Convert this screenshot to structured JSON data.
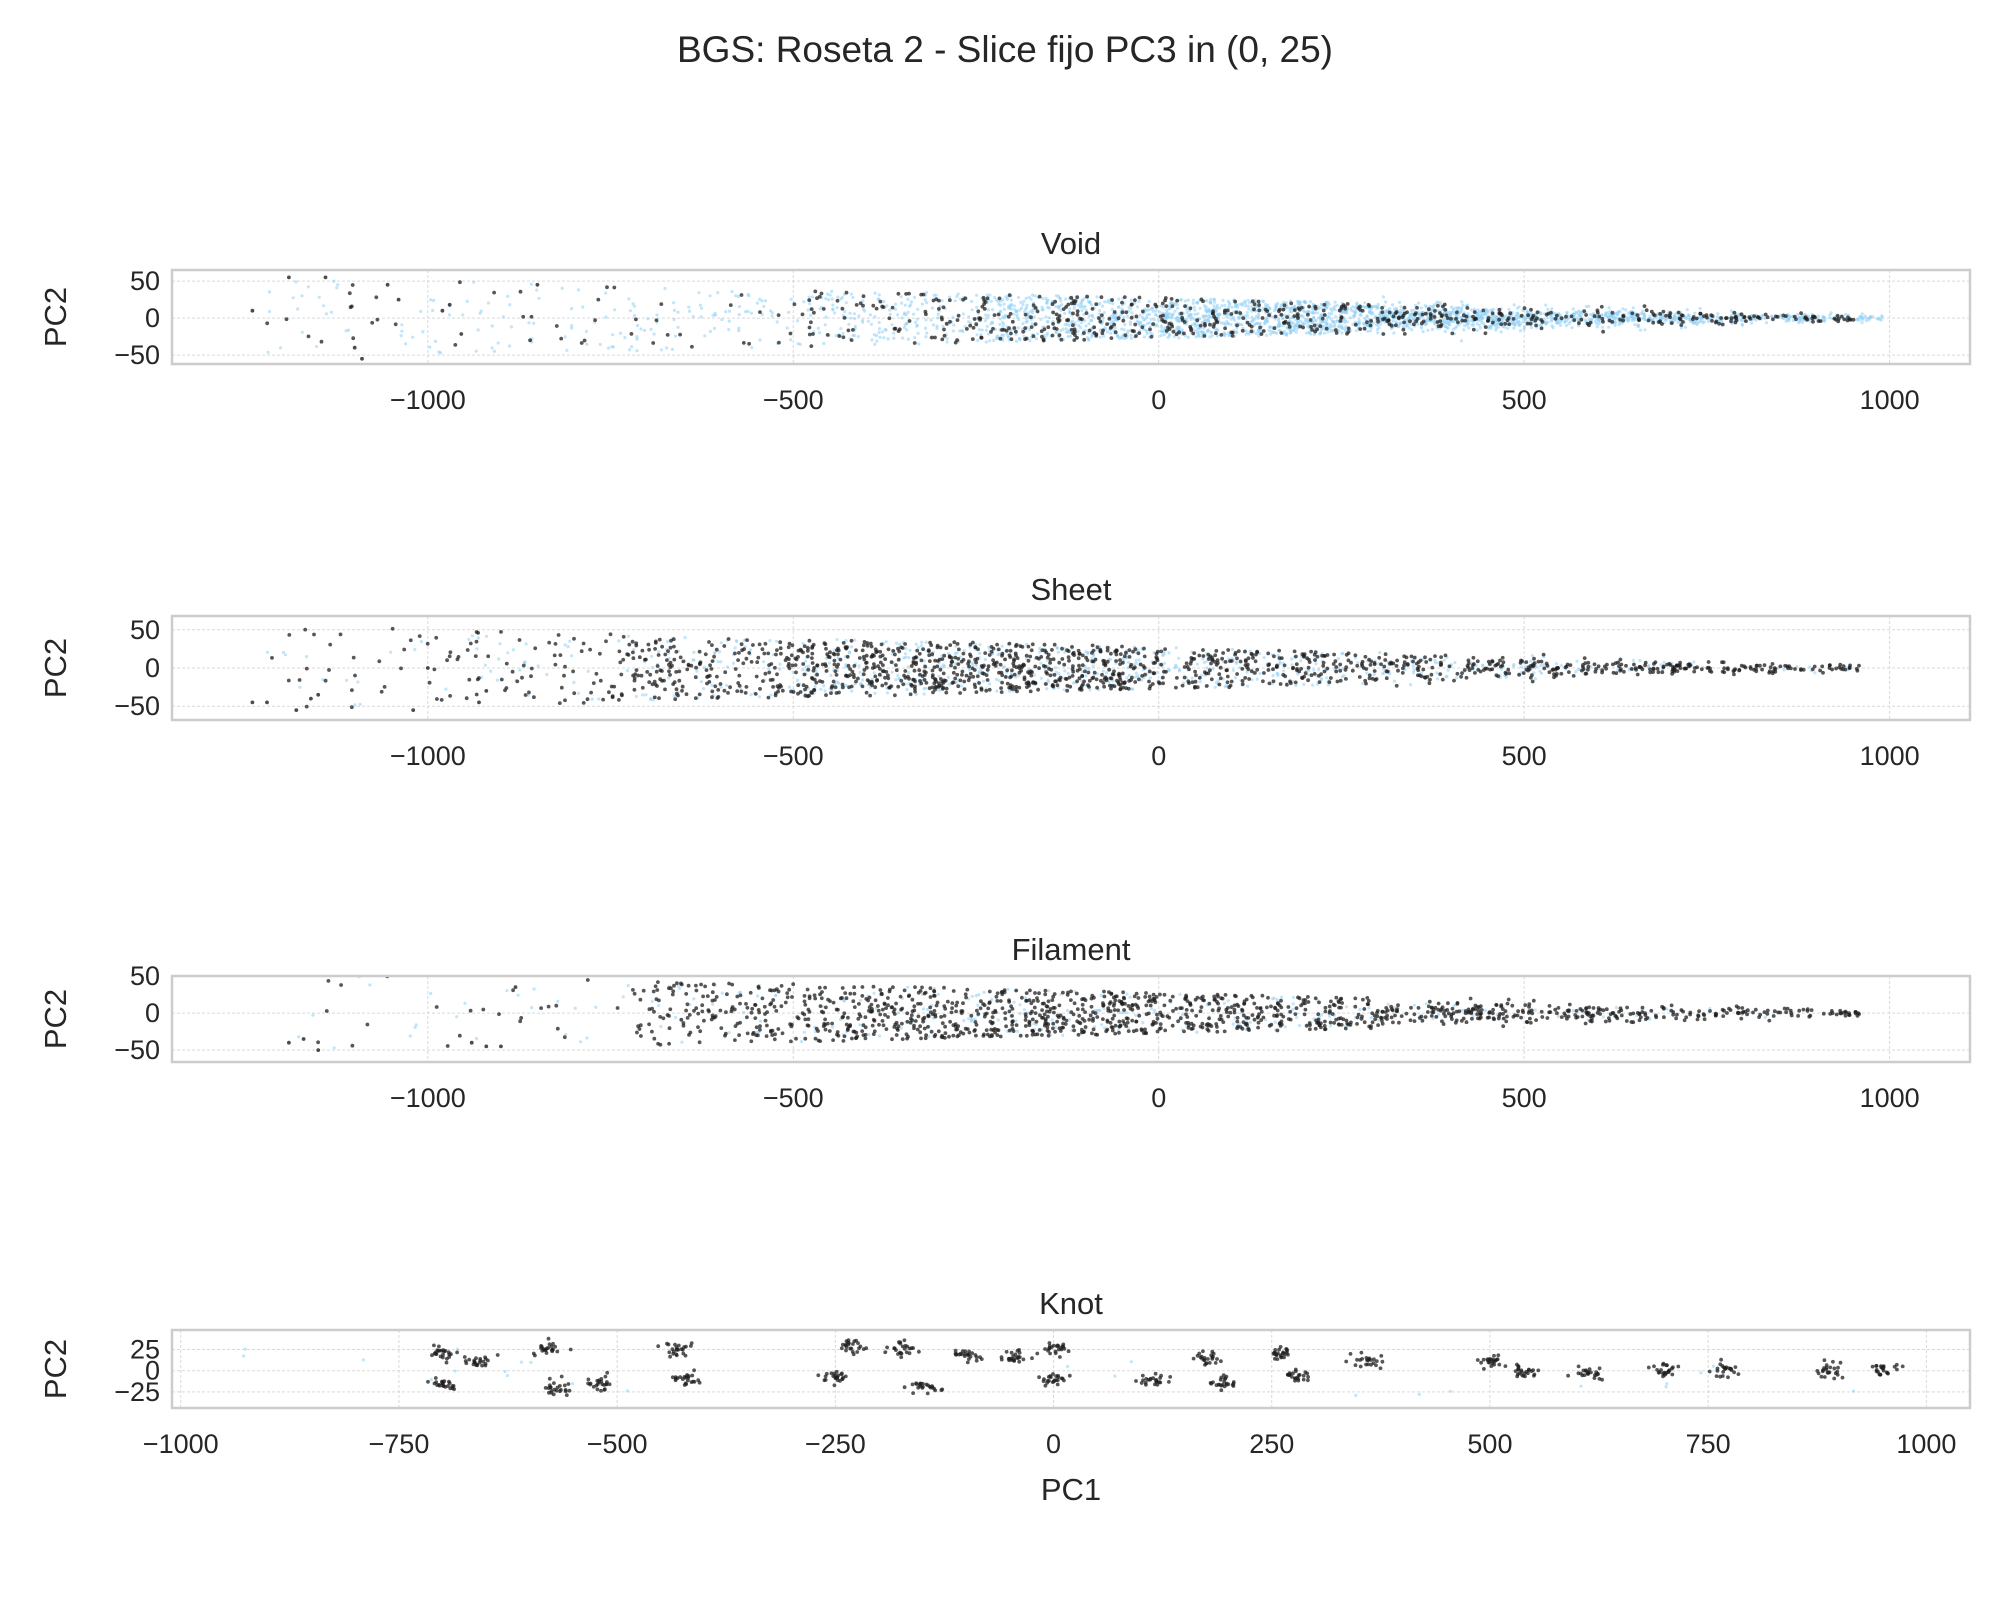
{
  "figure": {
    "title": "BGS: Roseta 2 - Slice fijo PC3 in (0, 25)"
  },
  "colors": {
    "background_points": "#8ecff5",
    "class_points": "#1f1f1f",
    "axes_edge": "#cccccc",
    "grid": "#d9d9d9",
    "text": "#262626"
  },
  "chart_data": [
    {
      "type": "scatter",
      "title": "Void",
      "xlabel": "",
      "ylabel": "PC2",
      "xlim": [
        -1350,
        1110
      ],
      "ylim": [
        -62,
        65
      ],
      "xticks": [
        -1000,
        -500,
        0,
        500,
        1000
      ],
      "xtick_labels": [
        "−1000",
        "−500",
        "0",
        "500",
        "1000"
      ],
      "yticks": [
        -50,
        0,
        50
      ],
      "ytick_labels": [
        "−50",
        "0",
        "50"
      ],
      "grid": true,
      "series": [
        {
          "role": "background",
          "color": "#8ecff5",
          "density": [
            0.05,
            0.07,
            0.12,
            0.3,
            0.7,
            1.0,
            0.9,
            0.6,
            0.3
          ],
          "x_range": [
            -1220,
            990
          ],
          "count": 2600
        },
        {
          "role": "class",
          "color": "#1f1f1f",
          "density": [
            0.05,
            0.06,
            0.08,
            0.3,
            0.5,
            0.5,
            0.4,
            0.3,
            0.25
          ],
          "x_range": [
            -1220,
            960
          ],
          "count": 650
        }
      ],
      "points": [
        {
          "x": -1240,
          "y": 10
        },
        {
          "x": -1190,
          "y": 55
        },
        {
          "x": -1140,
          "y": 55
        },
        {
          "x": -1100,
          "y": -40
        },
        {
          "x": -1055,
          "y": 45
        },
        {
          "x": -1040,
          "y": 25
        },
        {
          "x": -980,
          "y": 10
        },
        {
          "x": -970,
          "y": 18
        },
        {
          "x": -850,
          "y": 45
        },
        {
          "x": -860,
          "y": -30
        },
        {
          "x": -1090,
          "y": -55
        }
      ]
    },
    {
      "type": "scatter",
      "title": "Sheet",
      "xlabel": "",
      "ylabel": "PC2",
      "xlim": [
        -1350,
        1110
      ],
      "ylim": [
        -68,
        68
      ],
      "xticks": [
        -1000,
        -500,
        0,
        500,
        1000
      ],
      "xtick_labels": [
        "−1000",
        "−500",
        "0",
        "500",
        "1000"
      ],
      "yticks": [
        -50,
        0,
        50
      ],
      "ytick_labels": [
        "−50",
        "0",
        "50"
      ],
      "grid": true,
      "series": [
        {
          "role": "background",
          "color": "#8ecff5",
          "density": [
            0.05,
            0.1,
            0.3,
            0.6,
            0.6,
            0.5,
            0.35,
            0.2,
            0.1
          ],
          "x_range": [
            -1220,
            960
          ],
          "count": 700
        },
        {
          "role": "class",
          "color": "#1f1f1f",
          "density": [
            0.08,
            0.2,
            0.6,
            1.0,
            1.0,
            0.7,
            0.5,
            0.45,
            0.35
          ],
          "x_range": [
            -1240,
            960
          ],
          "count": 1400
        }
      ],
      "points": [
        {
          "x": -1240,
          "y": -45
        },
        {
          "x": -1220,
          "y": -45
        },
        {
          "x": -1180,
          "y": -55
        },
        {
          "x": -1160,
          "y": -40
        },
        {
          "x": -1150,
          "y": -35
        },
        {
          "x": -1020,
          "y": -55
        },
        {
          "x": -1000,
          "y": 0
        },
        {
          "x": -930,
          "y": -45
        },
        {
          "x": -920,
          "y": -30
        }
      ]
    },
    {
      "type": "scatter",
      "title": "Filament",
      "xlabel": "",
      "ylabel": "PC2",
      "xlim": [
        -1350,
        1110
      ],
      "ylim": [
        -66,
        50
      ],
      "xticks": [
        -1000,
        -500,
        0,
        500,
        1000
      ],
      "xtick_labels": [
        "−1000",
        "−500",
        "0",
        "500",
        "1000"
      ],
      "yticks": [
        -50,
        0,
        50
      ],
      "ytick_labels": [
        "−50",
        "0",
        "50"
      ],
      "grid": true,
      "series": [
        {
          "role": "background",
          "color": "#8ecff5",
          "density": [
            0.05,
            0.06,
            0.2,
            0.3,
            0.3,
            0.25,
            0.2,
            0.1,
            0.05
          ],
          "x_range": [
            -1220,
            960
          ],
          "count": 260
        },
        {
          "role": "class",
          "color": "#1f1f1f",
          "density": [
            0.03,
            0.03,
            0.6,
            0.9,
            1.0,
            0.7,
            0.6,
            0.4,
            0.3
          ],
          "x_range": [
            -1200,
            960
          ],
          "count": 1300
        }
      ],
      "points": [
        {
          "x": -1190,
          "y": -40
        },
        {
          "x": -1170,
          "y": -35
        },
        {
          "x": -1150,
          "y": -50
        },
        {
          "x": -940,
          "y": -40
        },
        {
          "x": -920,
          "y": -45
        },
        {
          "x": -900,
          "y": -45
        },
        {
          "x": -880,
          "y": 35
        }
      ]
    },
    {
      "type": "scatter",
      "title": "Knot",
      "xlabel": "PC1",
      "ylabel": "PC2",
      "xlim": [
        -1010,
        1050
      ],
      "ylim": [
        -44,
        48
      ],
      "xticks": [
        -1000,
        -750,
        -500,
        -250,
        0,
        250,
        500,
        750,
        1000
      ],
      "xtick_labels": [
        "−1000",
        "−750",
        "−500",
        "−250",
        "0",
        "250",
        "500",
        "750",
        "1000"
      ],
      "yticks": [
        -25,
        0,
        25
      ],
      "ytick_labels": [
        "−25",
        "0",
        "25"
      ],
      "grid": true,
      "series": [
        {
          "role": "background",
          "color": "#8ecff5",
          "count": 25
        },
        {
          "role": "class",
          "color": "#1f1f1f",
          "count": 700
        }
      ],
      "clusters": [
        {
          "x": -700,
          "y": 20
        },
        {
          "x": -700,
          "y": -15
        },
        {
          "x": -660,
          "y": 10
        },
        {
          "x": -580,
          "y": 25
        },
        {
          "x": -565,
          "y": -20
        },
        {
          "x": -520,
          "y": -15
        },
        {
          "x": -430,
          "y": 25
        },
        {
          "x": -420,
          "y": -10
        },
        {
          "x": -250,
          "y": -8
        },
        {
          "x": -230,
          "y": 30
        },
        {
          "x": -170,
          "y": 25
        },
        {
          "x": -150,
          "y": -20
        },
        {
          "x": -100,
          "y": 18
        },
        {
          "x": -50,
          "y": 18
        },
        {
          "x": 0,
          "y": -10
        },
        {
          "x": 0,
          "y": 25
        },
        {
          "x": 110,
          "y": -10
        },
        {
          "x": 175,
          "y": 15
        },
        {
          "x": 195,
          "y": -15
        },
        {
          "x": 260,
          "y": 20
        },
        {
          "x": 280,
          "y": -5
        },
        {
          "x": 360,
          "y": 10
        },
        {
          "x": 500,
          "y": 10
        },
        {
          "x": 540,
          "y": 0
        },
        {
          "x": 610,
          "y": -3
        },
        {
          "x": 700,
          "y": 2
        },
        {
          "x": 770,
          "y": 0
        },
        {
          "x": 890,
          "y": 0
        },
        {
          "x": 955,
          "y": 2
        }
      ]
    }
  ]
}
